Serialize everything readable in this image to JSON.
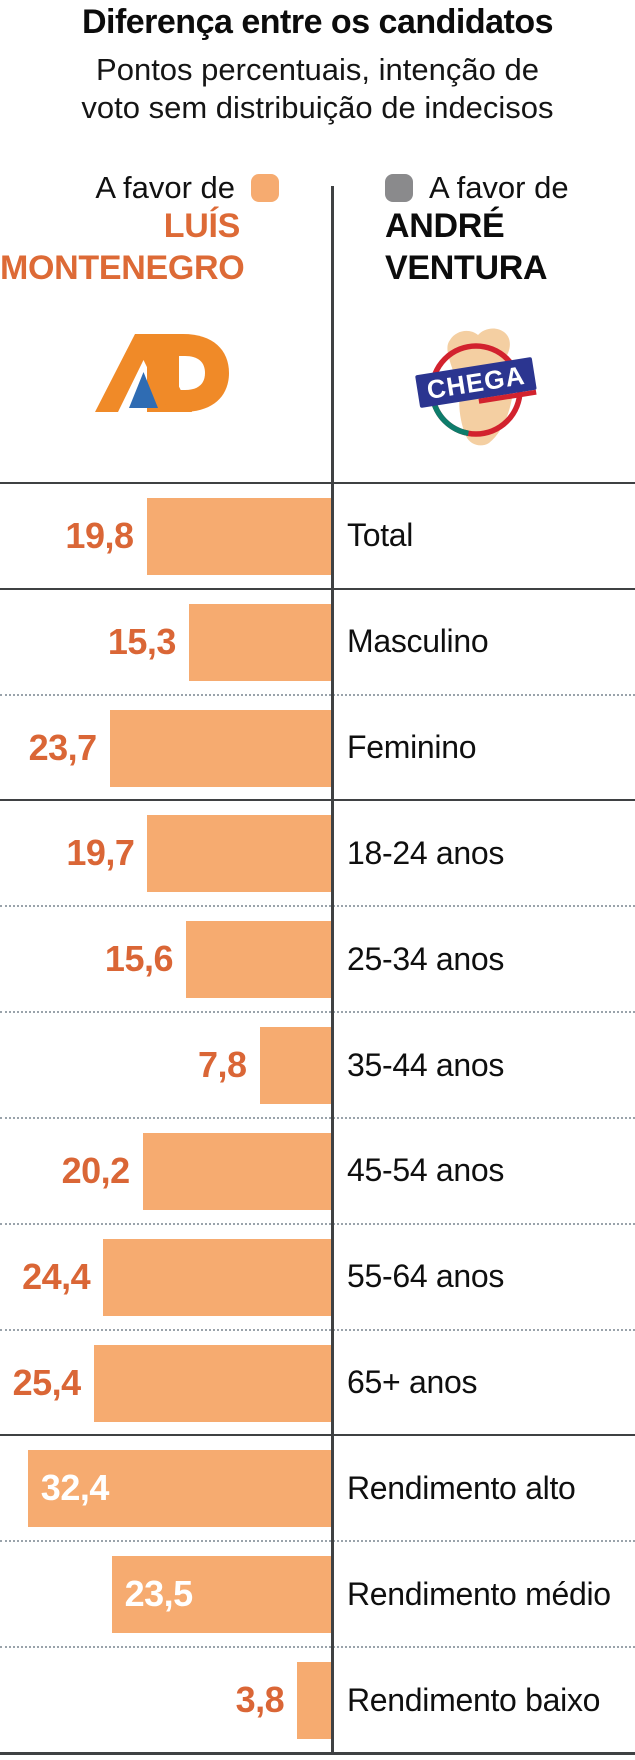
{
  "header": {
    "title": "Diferença entre os candidatos",
    "subtitle_line1": "Pontos percentuais, intenção de",
    "subtitle_line2": "voto sem distribuição de indecisos"
  },
  "legend": {
    "left": {
      "prefix": "A favor de",
      "name_line1": "LUÍS",
      "name_line2": "MONTENEGRO",
      "swatch_color": "#f6ab70",
      "party_logo_text": "AD"
    },
    "right": {
      "prefix": "A favor de",
      "name_line1": "ANDRÉ",
      "name_line2": "VENTURA",
      "swatch_color": "#8a8a8c",
      "party_logo_text": "CHEGA"
    }
  },
  "colors": {
    "bar": "#f6ab70",
    "value_label": "#da6636",
    "value_label_inside": "#ffffff",
    "solid_separator": "#3f4143",
    "dotted_separator": "#9aa3ab",
    "montenegro_name": "#dd6a36"
  },
  "chart_data": {
    "type": "bar",
    "orientation": "horizontal-left",
    "title": "Diferença entre os candidatos",
    "subtitle": "Pontos percentuais, intenção de voto sem distribuição de indecisos",
    "series": [
      {
        "name": "A favor de Luís Montenegro (AD)",
        "color": "#f6ab70",
        "values": [
          19.8,
          15.3,
          23.7,
          19.7,
          15.6,
          7.8,
          20.2,
          24.4,
          25.4,
          32.4,
          23.5,
          3.8
        ]
      }
    ],
    "categories": [
      "Total",
      "Masculino",
      "Feminino",
      "18-24 anos",
      "25-34 anos",
      "35-44 anos",
      "45-54 anos",
      "55-64 anos",
      "65+ anos",
      "Rendimento alto",
      "Rendimento médio",
      "Rendimento baixo"
    ],
    "values": [
      19.8,
      15.3,
      23.7,
      19.7,
      15.6,
      7.8,
      20.2,
      24.4,
      25.4,
      32.4,
      23.5,
      3.8
    ],
    "value_labels": [
      "19,8",
      "15,3",
      "23,7",
      "19,7",
      "15,6",
      "7,8",
      "20,2",
      "24,4",
      "25,4",
      "32,4",
      "23,5",
      "3,8"
    ],
    "xlim": [
      0,
      32.4
    ],
    "unit": "pontos percentuais",
    "legend_position": "top",
    "grid": "row-separators-only",
    "value_labels_inside_bar_indices": [
      9,
      10
    ],
    "separator_above_row": [
      "solid",
      "solid",
      "dotted",
      "solid",
      "dotted",
      "dotted",
      "dotted",
      "dotted",
      "dotted",
      "solid",
      "dotted",
      "dotted"
    ]
  }
}
